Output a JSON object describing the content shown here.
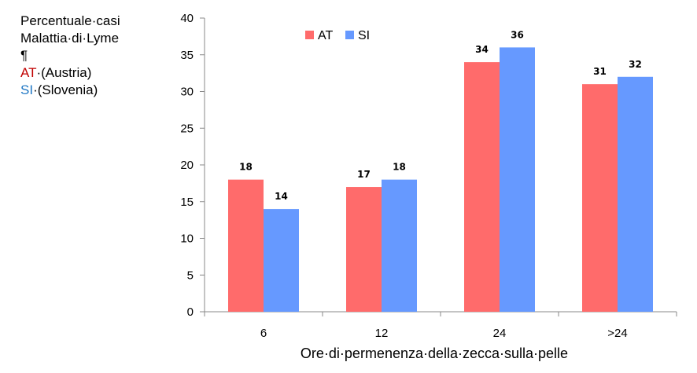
{
  "side_note": {
    "line1": "Percentuale·casi",
    "line2": "Malattia·di·Lyme",
    "pilcrow": "¶",
    "at_code": "AT",
    "at_rest": "·(Austria)",
    "si_code": "SI",
    "si_rest": "·(Slovenia)"
  },
  "colors": {
    "at": "#ff6b6b",
    "si": "#6699ff",
    "at_text": "#c00000",
    "si_text": "#1f77c4"
  },
  "chart_data": {
    "type": "bar",
    "categories": [
      "6",
      "12",
      "24",
      ">24"
    ],
    "series": [
      {
        "name": "AT",
        "values": [
          18,
          17,
          34,
          31
        ]
      },
      {
        "name": "SI",
        "values": [
          14,
          18,
          36,
          32
        ]
      }
    ],
    "title": "",
    "xlabel": "Ore·di·permenenza·della·zecca·sulla·pelle",
    "ylabel": "",
    "ylim": [
      0,
      40
    ],
    "yticks": [
      0,
      5,
      10,
      15,
      20,
      25,
      30,
      35,
      40
    ],
    "grid": false,
    "legend_position": "top"
  }
}
